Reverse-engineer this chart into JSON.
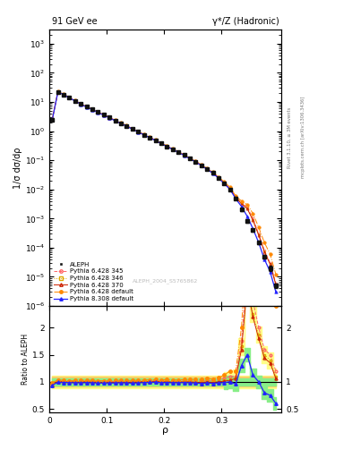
{
  "title_left": "91 GeV ee",
  "title_right": "γ*/Z (Hadronic)",
  "ylabel_main": "1/σ dσ/dρ",
  "ylabel_ratio": "Ratio to ALEPH",
  "xlabel": "ρ",
  "right_label_top": "Rivet 3.1.10, ≥ 3M events",
  "right_label_bottom": "mcplots.cern.ch [arXiv:1306.3436]",
  "watermark": "ALEPH_2004_S5765862",
  "legend_entries": [
    "ALEPH",
    "Pythia 6.428 345",
    "Pythia 6.428 346",
    "Pythia 6.428 370",
    "Pythia 6.428 default",
    "Pythia 8.308 default"
  ],
  "ylim_main": [
    1e-06,
    3000
  ],
  "ylim_ratio": [
    0.44,
    2.4
  ],
  "xlim": [
    0.0,
    0.405
  ],
  "rho_values": [
    0.005,
    0.015,
    0.025,
    0.035,
    0.045,
    0.055,
    0.065,
    0.075,
    0.085,
    0.095,
    0.105,
    0.115,
    0.125,
    0.135,
    0.145,
    0.155,
    0.165,
    0.175,
    0.185,
    0.195,
    0.205,
    0.215,
    0.225,
    0.235,
    0.245,
    0.255,
    0.265,
    0.275,
    0.285,
    0.295,
    0.305,
    0.315,
    0.325,
    0.335,
    0.345,
    0.355,
    0.365,
    0.375,
    0.385,
    0.395
  ],
  "aleph_y": [
    2.5,
    22.0,
    18.0,
    14.0,
    11.0,
    8.5,
    6.8,
    5.5,
    4.5,
    3.6,
    2.9,
    2.3,
    1.85,
    1.5,
    1.2,
    0.95,
    0.75,
    0.6,
    0.48,
    0.38,
    0.3,
    0.24,
    0.19,
    0.15,
    0.115,
    0.09,
    0.068,
    0.05,
    0.037,
    0.025,
    0.016,
    0.01,
    0.005,
    0.002,
    0.0008,
    0.0004,
    0.00015,
    5e-05,
    2e-05,
    5e-06
  ],
  "aleph_yerr": [
    0.3,
    1.5,
    1.2,
    0.9,
    0.7,
    0.5,
    0.4,
    0.3,
    0.25,
    0.2,
    0.16,
    0.13,
    0.1,
    0.08,
    0.065,
    0.052,
    0.042,
    0.033,
    0.027,
    0.021,
    0.017,
    0.013,
    0.01,
    0.008,
    0.006,
    0.005,
    0.004,
    0.003,
    0.002,
    0.0015,
    0.001,
    0.0007,
    0.0004,
    0.0002,
    0.0001,
    5e-05,
    2e-05,
    8e-06,
    4e-06,
    1e-06
  ],
  "py6_345_y": [
    2.4,
    22.5,
    18.2,
    14.1,
    11.1,
    8.6,
    6.9,
    5.55,
    4.52,
    3.62,
    2.92,
    2.32,
    1.87,
    1.51,
    1.21,
    0.96,
    0.76,
    0.61,
    0.49,
    0.385,
    0.305,
    0.242,
    0.192,
    0.152,
    0.117,
    0.091,
    0.069,
    0.051,
    0.038,
    0.026,
    0.017,
    0.011,
    0.0055,
    0.0035,
    0.0025,
    0.001,
    0.0003,
    8e-05,
    3e-05,
    6e-06
  ],
  "py6_346_y": [
    2.42,
    22.3,
    18.1,
    14.05,
    11.05,
    8.55,
    6.85,
    5.52,
    4.5,
    3.6,
    2.9,
    2.3,
    1.86,
    1.5,
    1.2,
    0.955,
    0.758,
    0.608,
    0.488,
    0.383,
    0.303,
    0.241,
    0.191,
    0.151,
    0.116,
    0.09,
    0.068,
    0.0505,
    0.037,
    0.0255,
    0.0165,
    0.0105,
    0.0054,
    0.0033,
    0.0022,
    0.0009,
    0.00028,
    7.5e-05,
    2.8e-05,
    5.5e-06
  ],
  "py6_370_y": [
    2.38,
    22.2,
    18.0,
    13.95,
    10.95,
    8.48,
    6.8,
    5.48,
    4.47,
    3.57,
    2.88,
    2.28,
    1.84,
    1.49,
    1.19,
    0.948,
    0.752,
    0.603,
    0.484,
    0.38,
    0.3,
    0.239,
    0.189,
    0.15,
    0.115,
    0.089,
    0.067,
    0.0498,
    0.0366,
    0.025,
    0.0162,
    0.0103,
    0.0053,
    0.0032,
    0.0022,
    0.00088,
    0.00027,
    7.2e-05,
    2.7e-05,
    5.3e-06
  ],
  "py6_def_y": [
    2.45,
    22.8,
    18.5,
    14.3,
    11.3,
    8.75,
    7.0,
    5.65,
    4.6,
    3.68,
    2.97,
    2.36,
    1.9,
    1.54,
    1.23,
    0.978,
    0.776,
    0.622,
    0.5,
    0.394,
    0.312,
    0.248,
    0.197,
    0.156,
    0.12,
    0.094,
    0.071,
    0.053,
    0.039,
    0.027,
    0.018,
    0.012,
    0.006,
    0.004,
    0.003,
    0.0015,
    0.0005,
    0.00015,
    6e-05,
    1.2e-05
  ],
  "py8_def_y": [
    2.35,
    21.8,
    17.8,
    13.8,
    10.8,
    8.35,
    6.7,
    5.4,
    4.4,
    3.52,
    2.84,
    2.25,
    1.82,
    1.47,
    1.17,
    0.932,
    0.74,
    0.594,
    0.477,
    0.374,
    0.296,
    0.236,
    0.187,
    0.148,
    0.113,
    0.088,
    0.066,
    0.049,
    0.036,
    0.0245,
    0.0158,
    0.01,
    0.0048,
    0.0026,
    0.0012,
    0.00045,
    0.00015,
    4e-05,
    1.5e-05,
    3e-06
  ],
  "color_py6_345": "#FF6666",
  "color_py6_346": "#DDAA00",
  "color_py6_370": "#CC2200",
  "color_py6_def": "#FF8800",
  "color_py8_def": "#2222FF",
  "color_aleph": "#111111",
  "band_yellow": "#FFFF88",
  "band_orange": "#FFCC66",
  "band_green": "#88EE88"
}
